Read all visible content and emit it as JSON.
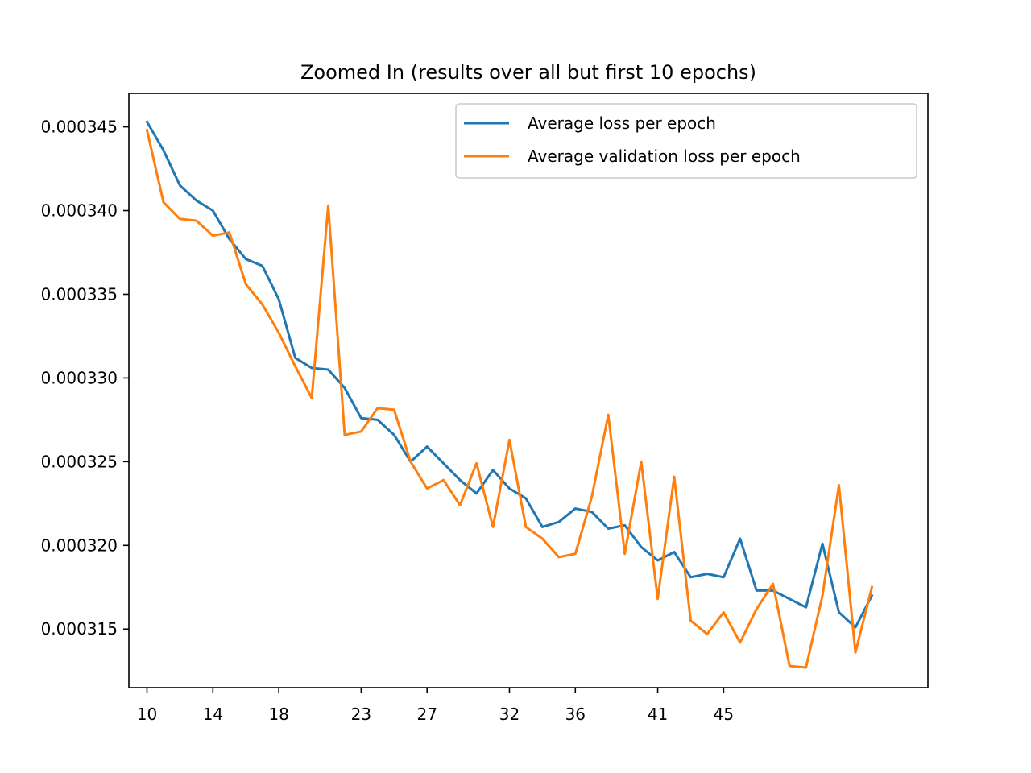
{
  "chart_data": {
    "type": "line",
    "title": "Zoomed In (results over all but first 10 epochs)",
    "xlabel": "",
    "ylabel": "",
    "x_ticks": [
      "10",
      "14",
      "18",
      "23",
      "27",
      "32",
      "36",
      "41",
      "45"
    ],
    "y_ticks": [
      "0.000315",
      "0.000320",
      "0.000325",
      "0.000330",
      "0.000335",
      "0.000340",
      "0.000345"
    ],
    "xlim": [
      8.9,
      57.4
    ],
    "ylim": [
      0.0003115,
      0.000347
    ],
    "legend_position": "upper-right",
    "grid": false,
    "x": [
      10,
      11,
      12,
      13,
      14,
      15,
      16,
      17,
      18,
      19,
      20,
      21,
      22,
      23,
      24,
      25,
      26,
      27,
      28,
      29,
      30,
      31,
      32,
      33,
      34,
      35,
      36,
      37,
      38,
      39,
      40,
      41,
      42,
      43,
      44,
      45,
      46,
      47,
      48,
      49,
      50,
      51,
      52,
      53,
      54
    ],
    "series": [
      {
        "name": "Average loss per epoch",
        "color": "#1f77b4",
        "values": [
          0.0003453,
          0.0003436,
          0.0003415,
          0.0003406,
          0.00034,
          0.0003383,
          0.0003371,
          0.0003367,
          0.0003347,
          0.0003312,
          0.0003306,
          0.0003305,
          0.0003294,
          0.0003276,
          0.0003275,
          0.0003266,
          0.000325,
          0.0003259,
          0.0003249,
          0.0003239,
          0.0003231,
          0.0003245,
          0.0003234,
          0.0003228,
          0.0003211,
          0.0003214,
          0.0003222,
          0.000322,
          0.000321,
          0.0003212,
          0.0003199,
          0.0003191,
          0.0003196,
          0.0003181,
          0.0003183,
          0.0003181,
          0.0003204,
          0.0003173,
          0.0003173,
          0.0003168,
          0.0003163,
          0.0003201,
          0.000316,
          0.0003151,
          0.000317
        ]
      },
      {
        "name": "Average validation loss per epoch",
        "color": "#ff7f0e",
        "values": [
          0.0003448,
          0.0003405,
          0.0003395,
          0.0003394,
          0.0003385,
          0.0003387,
          0.0003356,
          0.0003344,
          0.0003327,
          0.0003307,
          0.0003288,
          0.0003403,
          0.0003266,
          0.0003268,
          0.0003282,
          0.0003281,
          0.000325,
          0.0003234,
          0.0003239,
          0.0003224,
          0.0003249,
          0.0003211,
          0.0003263,
          0.0003211,
          0.0003204,
          0.0003193,
          0.0003195,
          0.0003229,
          0.0003278,
          0.0003195,
          0.000325,
          0.0003168,
          0.0003241,
          0.0003155,
          0.0003147,
          0.000316,
          0.0003142,
          0.0003162,
          0.0003177,
          0.0003128,
          0.0003127,
          0.000317,
          0.0003236,
          0.0003136,
          0.0003175
        ]
      }
    ]
  }
}
